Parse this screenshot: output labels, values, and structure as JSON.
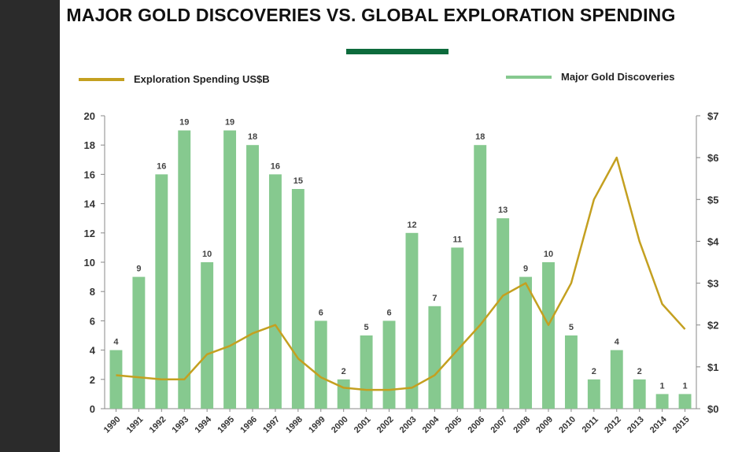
{
  "title": "MAJOR GOLD DISCOVERIES VS. GLOBAL EXPLORATION SPENDING",
  "legend": {
    "spending_label": "Exploration Spending US$B",
    "discoveries_label": "Major Gold Discoveries"
  },
  "colors": {
    "bar": "#86c98f",
    "line": "#c4a020",
    "title_rule": "#0d6b3c",
    "background": "#2b2b2b"
  },
  "chart_data": {
    "type": "bar",
    "title": "MAJOR GOLD DISCOVERIES VS. GLOBAL EXPLORATION SPENDING",
    "categories": [
      "1990",
      "1991",
      "1992",
      "1993",
      "1994",
      "1995",
      "1996",
      "1997",
      "1998",
      "1999",
      "2000",
      "2001",
      "2002",
      "2003",
      "2004",
      "2005",
      "2006",
      "2007",
      "2008",
      "2009",
      "2010",
      "2011",
      "2012",
      "2013",
      "2014",
      "2015"
    ],
    "series": [
      {
        "name": "Major Gold Discoveries",
        "type": "bar",
        "axis": "left",
        "values": [
          4,
          9,
          16,
          19,
          10,
          19,
          18,
          16,
          15,
          6,
          2,
          5,
          6,
          12,
          7,
          11,
          18,
          13,
          9,
          10,
          5,
          2,
          4,
          2,
          1,
          1
        ]
      },
      {
        "name": "Exploration Spending US$B",
        "type": "line",
        "axis": "right",
        "values": [
          0.8,
          0.75,
          0.7,
          0.7,
          1.3,
          1.5,
          1.8,
          2.0,
          1.2,
          0.75,
          0.5,
          0.45,
          0.45,
          0.5,
          0.8,
          1.4,
          2.0,
          2.7,
          3.0,
          2.0,
          3.0,
          5.0,
          6.0,
          4.0,
          2.5,
          1.9
        ]
      }
    ],
    "y_left": {
      "min": 0,
      "max": 20,
      "ticks": [
        "0",
        "2",
        "4",
        "6",
        "8",
        "10",
        "12",
        "14",
        "16",
        "18",
        "20"
      ]
    },
    "y_right": {
      "min": 0,
      "max": 7,
      "ticks": [
        "$0",
        "$1",
        "$2",
        "$3",
        "$4",
        "$5",
        "$6",
        "$7"
      ]
    },
    "legend_position": "top"
  }
}
